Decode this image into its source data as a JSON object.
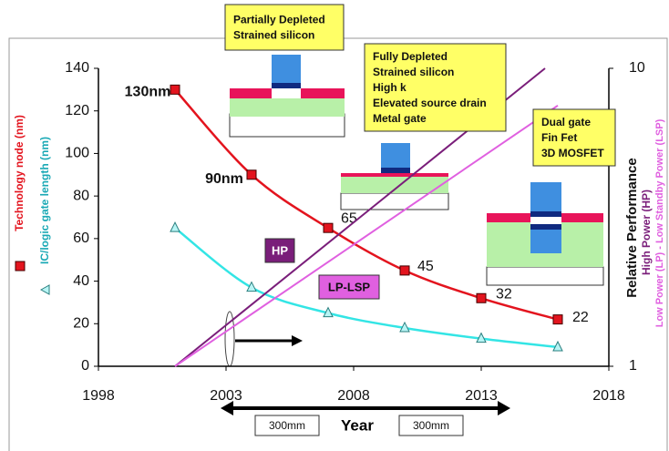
{
  "chart_data": {
    "type": "line",
    "xlabel": "Year",
    "xlim": [
      1998,
      2018
    ],
    "xticks": [
      1998,
      2003,
      2008,
      2013,
      2018
    ],
    "ylim": [
      0,
      140
    ],
    "yticks": [
      0,
      20,
      40,
      60,
      80,
      100,
      120,
      140
    ],
    "y2lim": [
      1,
      10
    ],
    "y2ticks": [
      1,
      10
    ],
    "y2scale": "log",
    "y2label": "Relative Performance",
    "x": [
      2001,
      2004,
      2007,
      2010,
      2013,
      2016
    ],
    "series": [
      {
        "name": "Technology node (nm)",
        "color": "#e3141e",
        "marker": "square",
        "values": [
          130,
          90,
          65,
          45,
          32,
          22
        ],
        "value_labels": [
          "130nm",
          "90nm",
          "65",
          "45",
          "32",
          "22"
        ]
      },
      {
        "name": "IC/logic gate length (nm)",
        "color": "#33e5e5",
        "marker": "triangle",
        "values": [
          65,
          37,
          25,
          18,
          13,
          9
        ]
      },
      {
        "name": "High Power (HP)",
        "color": "#7a1e7a",
        "axis": "y2",
        "label": "HP",
        "x": [
          2001,
          2015.5
        ],
        "values": [
          1,
          10
        ]
      },
      {
        "name": "Low Power (LP) - Low Standby Power (LSP)",
        "color": "#e060e0",
        "axis": "y2",
        "label": "LP-LSP",
        "x": [
          2001,
          2016
        ],
        "values": [
          1,
          7.5
        ]
      }
    ],
    "annotations": [
      {
        "lines": [
          "Partially Depleted",
          "Strained silicon"
        ]
      },
      {
        "lines": [
          "Fully Depleted",
          "Strained silicon",
          "High k",
          "Elevated source drain",
          "Metal gate"
        ]
      },
      {
        "lines": [
          "Dual gate",
          "Fin Fet",
          "3D MOSFET"
        ]
      },
      {
        "lines": [
          "300mm"
        ]
      },
      {
        "lines": [
          "300mm"
        ]
      }
    ]
  }
}
